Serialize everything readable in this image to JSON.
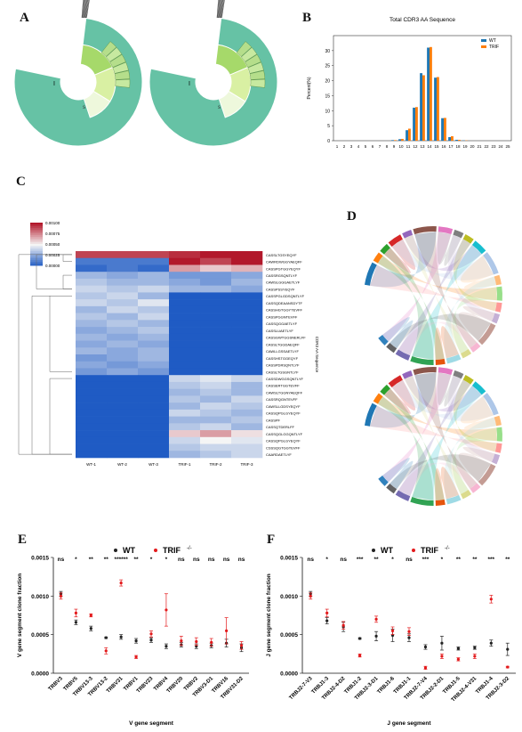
{
  "panel_labels": {
    "a": "A",
    "b": "B",
    "c": "C",
    "d": "D",
    "e": "E",
    "f": "F"
  },
  "colors": {
    "wt": "#1f77b4",
    "trif": "#ff7f0e",
    "teal": "#66c2a5",
    "sunburst_green": "#a6d96a",
    "sunburst_light": "#d9f0a3",
    "err_wt": "#222222",
    "err_trif": "#e31a1c"
  },
  "chart_data": [
    {
      "id": "B",
      "type": "bar",
      "title": "Total CDR3 AA Sequence",
      "xlabel": "",
      "ylabel": "Percent(%)",
      "ylim": [
        0,
        35
      ],
      "yticks": [
        0,
        5,
        10,
        15,
        20,
        25,
        30
      ],
      "categories": [
        "1",
        "2",
        "3",
        "4",
        "5",
        "6",
        "7",
        "8",
        "9",
        "10",
        "11",
        "12",
        "13",
        "14",
        "15",
        "16",
        "17",
        "18",
        "19",
        "20",
        "21",
        "22",
        "23",
        "24",
        "25"
      ],
      "series": [
        {
          "name": "WT",
          "values": [
            0,
            0,
            0,
            0,
            0,
            0,
            0,
            0,
            0.2,
            0.5,
            3.5,
            11,
            22.5,
            31,
            21,
            7.5,
            1.2,
            0.3,
            0.1,
            0,
            0,
            0,
            0,
            0,
            0
          ]
        },
        {
          "name": "TRIF",
          "values": [
            0,
            0,
            0,
            0,
            0,
            0,
            0,
            0,
            0.2,
            0.6,
            4,
            11.2,
            21.8,
            31.2,
            21.2,
            7.6,
            1.5,
            0.3,
            0.1,
            0,
            0,
            0,
            0,
            0,
            0
          ]
        }
      ],
      "legend": "top-right",
      "grid": false
    },
    {
      "id": "C",
      "type": "heatmap",
      "ylabel": "CDR3 AA Sequence",
      "colorbar_ticks": [
        "0.00100",
        "0.00075",
        "0.00050",
        "0.00025",
        "0.00000"
      ],
      "columns": [
        "WT-1",
        "WT-2",
        "WT-3",
        "TRIF-1",
        "TRIF-2",
        "TRIF-3"
      ],
      "rows": [
        "CASSLTGSYEQYF",
        "CAWRDWGGYAEQFF",
        "CASSPGTGGYEQYF",
        "CASSRGSQNTLYF",
        "CAWSLGGGAETLYF",
        "CASSPSSYEQYF",
        "CASSPGLGDSQNTLYF",
        "CASSQDEAANSDYTF",
        "CASSHGTGGYTEVFF",
        "CASSPGGNTEVFF",
        "CASSQGGAETLYF",
        "CASSLUAETLYF",
        "CASSGWTGGSNERLFF",
        "CASSLTGGDAEQFF",
        "CAWLLGSSAETLYF",
        "CASSHSTGGEQYF",
        "CASSPDRSQNTLYF",
        "CASSLTGSGNTLYF",
        "CASSDWGGSQNTLYF",
        "CASSERTGGTEVFF",
        "CAWSLTGGNYAEQFF",
        "CASSRQGNTEVFF",
        "CAWSLLGDSYEQYF",
        "CASSQPGLGYEQYF",
        "CASSPF",
        "CASSQTDERLFF",
        "CASSQGLGGQNTLYF",
        "CASSQPGLGYEQYF",
        "CSSSQGTGGTEVFF",
        "CAARDAETLYF"
      ],
      "values": [
        [
          0.0009,
          0.0009,
          0.0009,
          0.00095,
          0.001,
          0.001
        ],
        [
          0.0001,
          0.0001,
          0.0001,
          0.001,
          0.0009,
          0.001
        ],
        [
          5e-05,
          0.0001,
          5e-05,
          0.0007,
          0.0006,
          0.00065
        ],
        [
          0.0003,
          0.00025,
          0.0003,
          0.0002,
          0.0002,
          0.00025
        ],
        [
          0.00035,
          0.0003,
          0.0003,
          0.00025,
          0.0002,
          0.0003
        ],
        [
          0.0004,
          0.00035,
          0.0004,
          0.0003,
          0.0003,
          0.00025
        ],
        [
          0.00035,
          0.0004,
          0.0003,
          0,
          0,
          0
        ],
        [
          0.0004,
          0.00035,
          0.00045,
          0,
          0,
          0
        ],
        [
          0.0003,
          0.0004,
          0.00035,
          0,
          0,
          0
        ],
        [
          0.00035,
          0.0003,
          0.0004,
          0,
          0,
          0
        ],
        [
          0.0003,
          0.00035,
          0.0003,
          0,
          0,
          0
        ],
        [
          0.00025,
          0.0003,
          0.00035,
          0,
          0,
          0
        ],
        [
          0.0003,
          0.00025,
          0.0003,
          0,
          0,
          0
        ],
        [
          0.00025,
          0.0003,
          0.00025,
          0,
          0,
          0
        ],
        [
          0.0003,
          0.00025,
          0.0003,
          0,
          0,
          0
        ],
        [
          0.0002,
          0.00025,
          0.0003,
          0,
          0,
          0
        ],
        [
          0.00025,
          0.0002,
          0.00025,
          0,
          0,
          0
        ],
        [
          0.0002,
          0.00025,
          0.0002,
          0,
          0,
          0
        ],
        [
          0,
          0,
          0,
          0.0004,
          0.00045,
          0.0004
        ],
        [
          0,
          0,
          0,
          0.00035,
          0.0004,
          0.0003
        ],
        [
          0,
          0,
          0,
          0.0003,
          0.00035,
          0.0003
        ],
        [
          0,
          0,
          0,
          0.00035,
          0.0003,
          0.0004
        ],
        [
          0,
          0,
          0,
          0.0003,
          0.0004,
          0.00035
        ],
        [
          0,
          0,
          0,
          0.0004,
          0.00035,
          0.0003
        ],
        [
          0,
          0,
          0,
          0.0003,
          0.0003,
          0.00035
        ],
        [
          0,
          0,
          0,
          0.00035,
          0.0004,
          0.0003
        ],
        [
          0,
          0,
          0,
          0.0006,
          0.0007,
          0.00055
        ],
        [
          0,
          0,
          0,
          0.0004,
          0.0005,
          0.00045
        ],
        [
          0,
          0,
          0,
          0.00035,
          0.0004,
          0.0004
        ],
        [
          0,
          0,
          0,
          0.0003,
          0.00035,
          0.0004
        ]
      ]
    },
    {
      "id": "E",
      "type": "scatter",
      "xlabel": "V gene segment",
      "ylabel": "V gene segment clone fraction",
      "ylim": [
        0,
        0.0015
      ],
      "yticks": [
        "0.0000",
        "0.0005",
        "0.0010",
        "0.0015"
      ],
      "legend": "top",
      "series_names": [
        "WT",
        "TRIF"
      ],
      "legend_superscript": "-/-",
      "categories": [
        "TRBV3",
        "TRBV5",
        "TRBV13-3",
        "TRBV13-2",
        "TRBV31",
        "TRBV1",
        "TRBV23",
        "TRBV4",
        "TRBV20",
        "TRBV2",
        "TRBV3-D1",
        "TRBV16",
        "TRBV31-D2"
      ],
      "significance": [
        "ns",
        "*",
        "**",
        "**",
        "******",
        "**",
        "*",
        "*",
        "ns",
        "ns",
        "ns",
        "ns",
        "ns"
      ],
      "wt": [
        0.00103,
        0.00066,
        0.00058,
        0.00046,
        0.00047,
        0.00042,
        0.00043,
        0.00035,
        0.00037,
        0.00035,
        0.00036,
        0.00039,
        0.00033
      ],
      "wt_err": [
        3e-05,
        3e-05,
        3e-05,
        1e-05,
        3e-05,
        3e-05,
        3e-05,
        3e-05,
        3e-05,
        3e-05,
        3e-05,
        5e-05,
        5e-05
      ],
      "trif": [
        0.001,
        0.00078,
        0.00075,
        0.00029,
        0.00117,
        0.00021,
        0.00051,
        0.00082,
        0.00042,
        0.00041,
        0.0004,
        0.00055,
        0.00036
      ],
      "trif_err": [
        4e-05,
        5e-05,
        2e-05,
        4e-05,
        4e-05,
        2e-05,
        4e-05,
        0.00021,
        6e-05,
        5e-05,
        5e-05,
        0.00017,
        5e-05
      ]
    },
    {
      "id": "F",
      "type": "scatter",
      "xlabel": "J gene segment",
      "ylabel": "J gene segment clone fraction",
      "ylim": [
        0,
        0.0015
      ],
      "yticks": [
        "0.0000",
        "0.0005",
        "0.0010",
        "0.0015"
      ],
      "legend": "top",
      "series_names": [
        "WT",
        "TRIF"
      ],
      "legend_superscript": "-/-",
      "categories": [
        "TRBJ2-7-V3",
        "TRBJ1-3",
        "TRBJ2-4-D2",
        "TRBJ1-2",
        "TRBJ2-3-D1",
        "TRBJ1-6",
        "TRBJ1-1",
        "TRBJ2-7-V4",
        "TRBJ2-2-D1",
        "TRBJ1-5",
        "TRBJ2-4-V31",
        "TRBJ1-4",
        "TRBJ2-3-D2"
      ],
      "significance": [
        "ns",
        "*",
        "ns",
        "***",
        "**",
        "*",
        "ns",
        "***",
        "*",
        "**",
        "**",
        "***",
        "**"
      ],
      "wt": [
        0.00103,
        0.00068,
        0.0006,
        0.00045,
        0.00048,
        0.00049,
        0.00046,
        0.00034,
        0.00039,
        0.00032,
        0.00033,
        0.00039,
        0.00031
      ],
      "wt_err": [
        3e-05,
        4e-05,
        6e-05,
        1e-05,
        6e-05,
        8e-05,
        5e-05,
        3e-05,
        9e-05,
        2e-05,
        2e-05,
        4e-05,
        8e-05
      ],
      "trif": [
        0.001,
        0.00078,
        0.00062,
        0.00023,
        0.0007,
        0.00055,
        0.00054,
        7e-05,
        0.00022,
        0.00018,
        0.00022,
        0.00096,
        8e-05
      ],
      "trif_err": [
        4e-05,
        5e-05,
        5e-05,
        2e-05,
        4e-05,
        5e-05,
        5e-05,
        2e-05,
        3e-05,
        2e-05,
        3e-05,
        5e-05,
        1e-05
      ]
    }
  ],
  "heatmap_labels": [
    "WT-1",
    "WT-2",
    "WT-3",
    "TRIF-1",
    "TRIF-2",
    "TRIF-3"
  ],
  "sunburst_center_labels": [
    "s",
    "s"
  ],
  "chord_colors": [
    "#1f77b4",
    "#ff7f0e",
    "#2ca02c",
    "#d62728",
    "#9467bd",
    "#8c564b",
    "#e377c2",
    "#7f7f7f",
    "#bcbd22",
    "#17becf",
    "#aec7e8",
    "#ffbb78",
    "#98df8a",
    "#ff9896",
    "#c5b0d5",
    "#c49c94",
    "#f7b6d2",
    "#dbdb8d",
    "#9edae5",
    "#e6550d",
    "#31a354",
    "#756bb1",
    "#636363",
    "#3182bd",
    "#fdae6b"
  ]
}
